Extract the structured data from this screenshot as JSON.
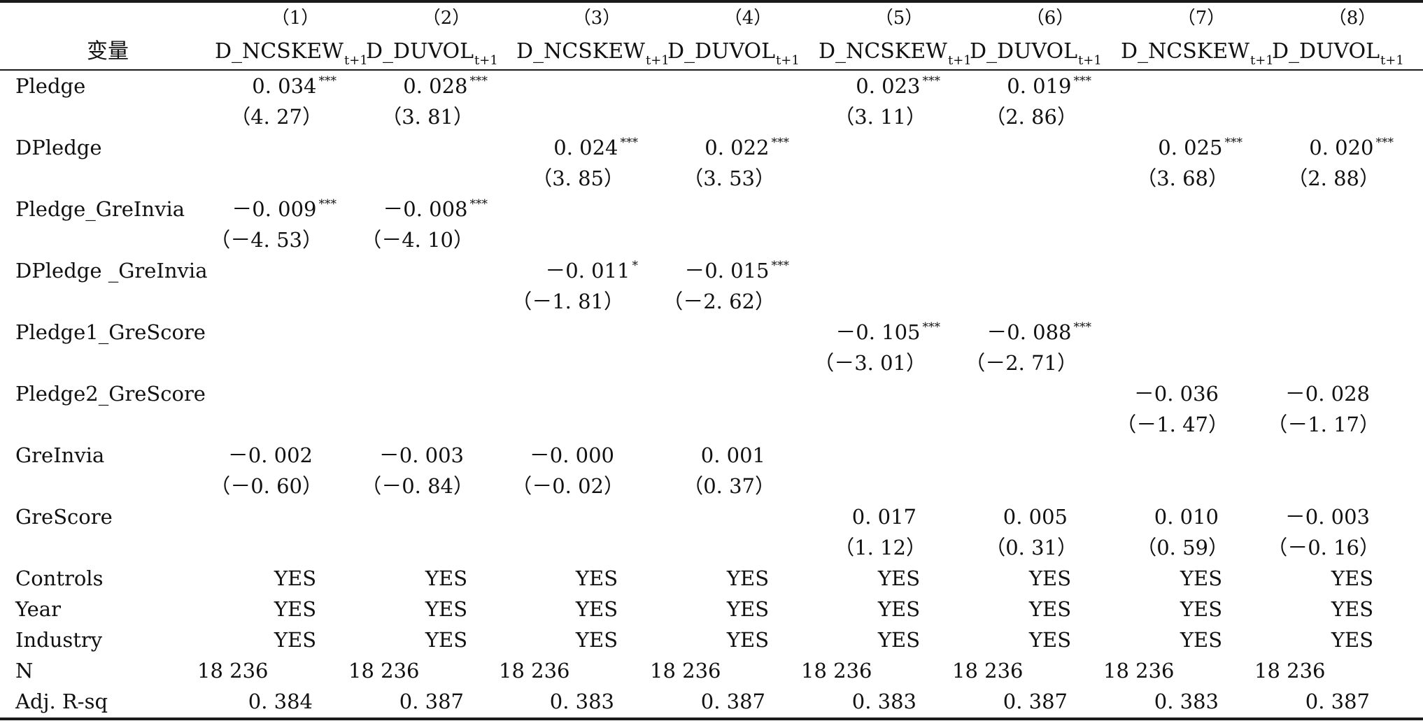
{
  "table": {
    "column_numbers": [
      "（1）",
      "（2）",
      "（3）",
      "（4）",
      "（5）",
      "（6）",
      "（7）",
      "（8）"
    ],
    "var_header": "变量",
    "col_headers": [
      {
        "name": "D_NCSKEW",
        "sub": "t+1"
      },
      {
        "name": "D_DUVOL",
        "sub": "t+1"
      },
      {
        "name": "D_NCSKEW",
        "sub": "t+1"
      },
      {
        "name": "D_DUVOL",
        "sub": "t+1"
      },
      {
        "name": "D_NCSKEW",
        "sub": "t+1"
      },
      {
        "name": "D_DUVOL",
        "sub": "t+1"
      },
      {
        "name": "D_NCSKEW",
        "sub": "t+1"
      },
      {
        "name": "D_DUVOL",
        "sub": "t+1"
      }
    ],
    "rows": [
      {
        "label": "Pledge",
        "coef": [
          [
            "0.034",
            "***"
          ],
          [
            "0.028",
            "***"
          ],
          [
            "",
            ""
          ],
          [
            "",
            ""
          ],
          [
            "0.023",
            "***"
          ],
          [
            "0.019",
            "***"
          ],
          [
            "",
            ""
          ],
          [
            "",
            ""
          ]
        ],
        "tstat": [
          "（4.27）",
          "（3.81）",
          "",
          "",
          "（3.11）",
          "（2.86）",
          "",
          ""
        ]
      },
      {
        "label": "DPledge",
        "coef": [
          [
            "",
            ""
          ],
          [
            "",
            ""
          ],
          [
            "0.024",
            "***"
          ],
          [
            "0.022",
            "***"
          ],
          [
            "",
            ""
          ],
          [
            "",
            ""
          ],
          [
            "0.025",
            "***"
          ],
          [
            "0.020",
            "***"
          ]
        ],
        "tstat": [
          "",
          "",
          "（3.85）",
          "（3.53）",
          "",
          "",
          "（3.68）",
          "（2.88）"
        ]
      },
      {
        "label": "Pledge_GreInvia",
        "coef": [
          [
            "－0.009",
            "***"
          ],
          [
            "－0.008",
            "***"
          ],
          [
            "",
            ""
          ],
          [
            "",
            ""
          ],
          [
            "",
            ""
          ],
          [
            "",
            ""
          ],
          [
            "",
            ""
          ],
          [
            "",
            ""
          ]
        ],
        "tstat": [
          "（－4.53）",
          "（－4.10）",
          "",
          "",
          "",
          "",
          "",
          ""
        ]
      },
      {
        "label": "DPledge _GreInvia",
        "coef": [
          [
            "",
            ""
          ],
          [
            "",
            ""
          ],
          [
            "－0.011",
            "*"
          ],
          [
            "－0.015",
            "***"
          ],
          [
            "",
            ""
          ],
          [
            "",
            ""
          ],
          [
            "",
            ""
          ],
          [
            "",
            ""
          ]
        ],
        "tstat": [
          "",
          "",
          "（－1.81）",
          "（－2.62）",
          "",
          "",
          "",
          ""
        ]
      },
      {
        "label": "Pledge1_GreScore",
        "coef": [
          [
            "",
            ""
          ],
          [
            "",
            ""
          ],
          [
            "",
            ""
          ],
          [
            "",
            ""
          ],
          [
            "－0.105",
            "***"
          ],
          [
            "－0.088",
            "***"
          ],
          [
            "",
            ""
          ],
          [
            "",
            ""
          ]
        ],
        "tstat": [
          "",
          "",
          "",
          "",
          "（－3.01）",
          "（－2.71）",
          "",
          ""
        ]
      },
      {
        "label": "Pledge2_GreScore",
        "coef": [
          [
            "",
            ""
          ],
          [
            "",
            ""
          ],
          [
            "",
            ""
          ],
          [
            "",
            ""
          ],
          [
            "",
            ""
          ],
          [
            "",
            ""
          ],
          [
            "－0.036",
            ""
          ],
          [
            "－0.028",
            ""
          ]
        ],
        "tstat": [
          "",
          "",
          "",
          "",
          "",
          "",
          "（－1.47）",
          "（－1.17）"
        ]
      },
      {
        "label": "GreInvia",
        "coef": [
          [
            "－0.002",
            ""
          ],
          [
            "－0.003",
            ""
          ],
          [
            "－0.000",
            ""
          ],
          [
            "0.001",
            ""
          ],
          [
            "",
            ""
          ],
          [
            "",
            ""
          ],
          [
            "",
            ""
          ],
          [
            "",
            ""
          ]
        ],
        "tstat": [
          "（－0.60）",
          "（－0.84）",
          "（－0.02）",
          "（0.37）",
          "",
          "",
          "",
          ""
        ]
      },
      {
        "label": "GreScore",
        "coef": [
          [
            "",
            ""
          ],
          [
            "",
            ""
          ],
          [
            "",
            ""
          ],
          [
            "",
            ""
          ],
          [
            "0.017",
            ""
          ],
          [
            "0.005",
            ""
          ],
          [
            "0.010",
            ""
          ],
          [
            "－0.003",
            ""
          ]
        ],
        "tstat": [
          "",
          "",
          "",
          "",
          "（1.12）",
          "（0.31）",
          "（0.59）",
          "（－0.16）"
        ]
      }
    ],
    "yes_rows": [
      {
        "label": "Controls",
        "values": [
          "YES",
          "YES",
          "YES",
          "YES",
          "YES",
          "YES",
          "YES",
          "YES"
        ]
      },
      {
        "label": "Year",
        "values": [
          "YES",
          "YES",
          "YES",
          "YES",
          "YES",
          "YES",
          "YES",
          "YES"
        ]
      },
      {
        "label": "Industry",
        "values": [
          "YES",
          "YES",
          "YES",
          "YES",
          "YES",
          "YES",
          "YES",
          "YES"
        ]
      }
    ],
    "n_row": {
      "label": "N",
      "values": [
        "18 236",
        "18 236",
        "18 236",
        "18 236",
        "18 236",
        "18 236",
        "18 236",
        "18 236"
      ]
    },
    "r2_row": {
      "label": "Adj.  R-sq",
      "values": [
        "0.384",
        "0.387",
        "0.383",
        "0.387",
        "0.383",
        "0.387",
        "0.383",
        "0.387"
      ]
    }
  }
}
